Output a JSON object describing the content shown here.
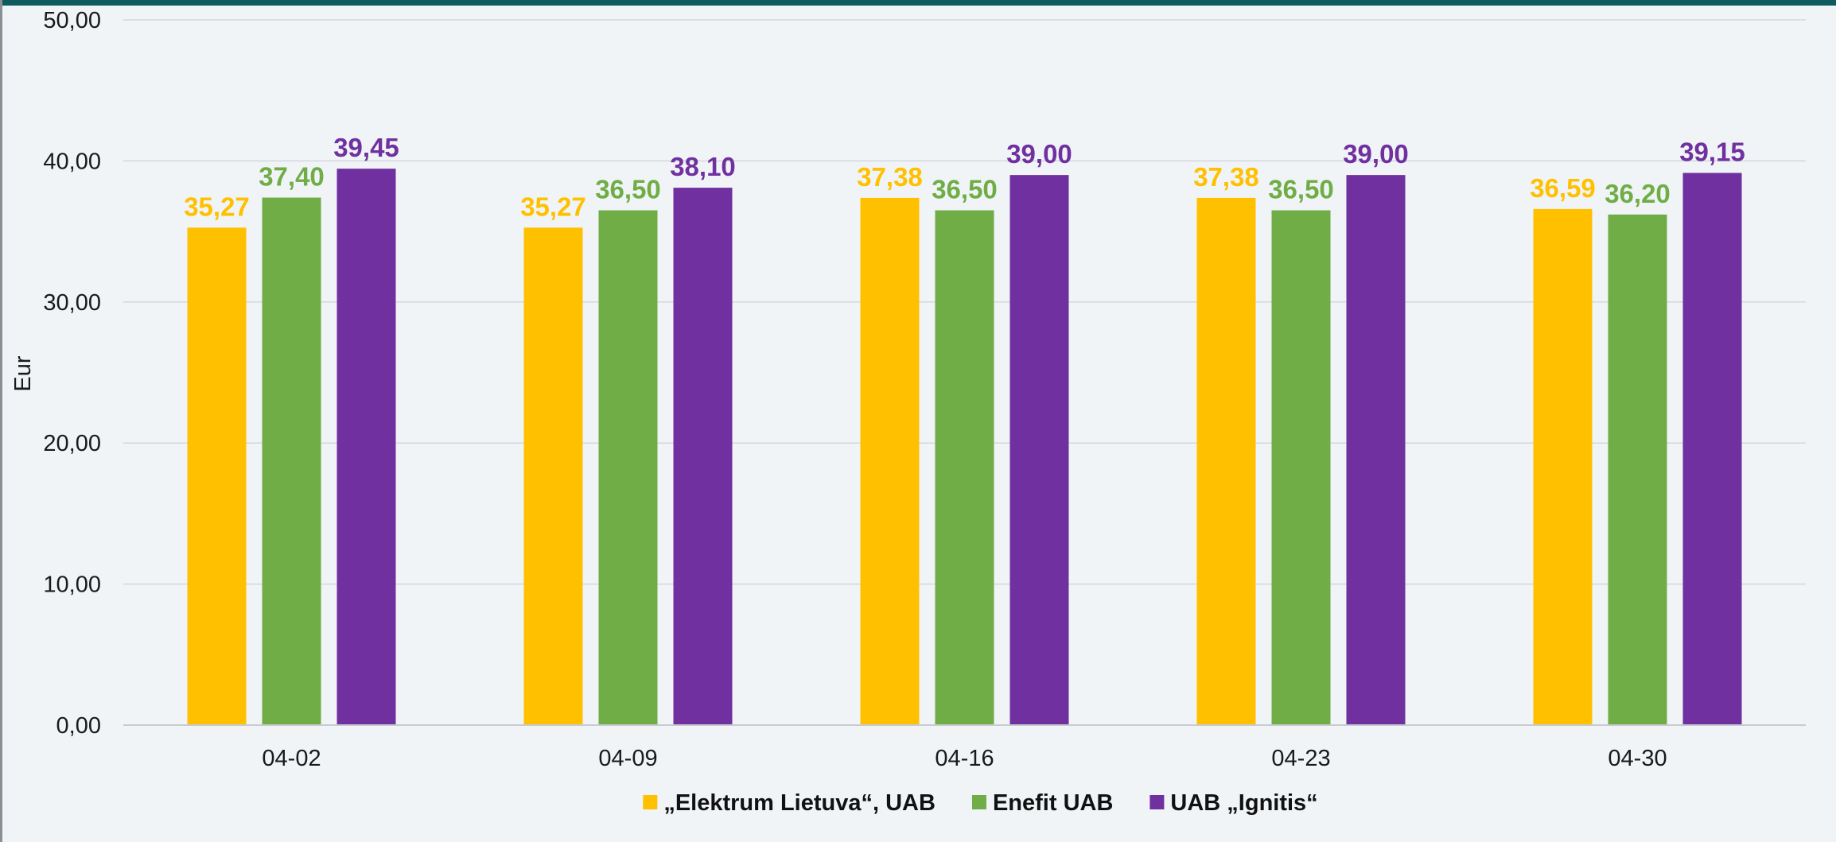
{
  "chart_data": {
    "type": "bar",
    "title": "",
    "xlabel": "",
    "ylabel": "Eur",
    "ylim": [
      0,
      50
    ],
    "y_ticks": [
      "0,00",
      "10,00",
      "20,00",
      "30,00",
      "40,00",
      "50,00"
    ],
    "y_tick_values": [
      0,
      10,
      20,
      30,
      40,
      50
    ],
    "grid": true,
    "legend_position": "bottom",
    "categories": [
      "04-02",
      "04-09",
      "04-16",
      "04-23",
      "04-30"
    ],
    "series": [
      {
        "name": "„Elektrum Lietuva“, UAB",
        "color": "#ffc000",
        "values": [
          35.27,
          35.27,
          37.38,
          37.38,
          36.59
        ],
        "labels": [
          "35,27",
          "35,27",
          "37,38",
          "37,38",
          "36,59"
        ]
      },
      {
        "name": "Enefit UAB",
        "color": "#70ad47",
        "values": [
          37.4,
          36.5,
          36.5,
          36.5,
          36.2
        ],
        "labels": [
          "37,40",
          "36,50",
          "36,50",
          "36,50",
          "36,20"
        ]
      },
      {
        "name": "UAB „Ignitis“",
        "color": "#7030a0",
        "values": [
          39.45,
          38.1,
          39.0,
          39.0,
          39.15
        ],
        "labels": [
          "39,45",
          "38,10",
          "39,00",
          "39,00",
          "39,15"
        ]
      }
    ]
  },
  "colors": {
    "top_bar": "#0e5a5c",
    "background": "#f0f4f7",
    "gridline": "#d4d8dc"
  }
}
